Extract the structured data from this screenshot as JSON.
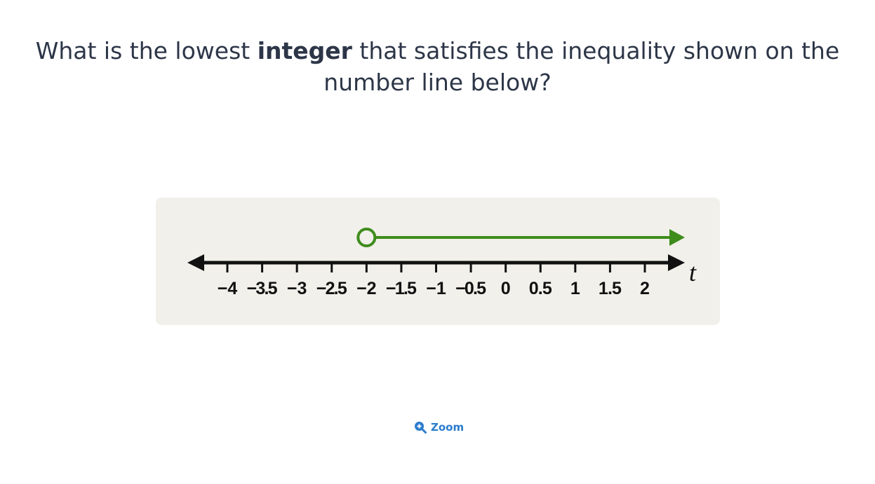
{
  "question": {
    "text_before": "What is the lowest ",
    "text_bold": "integer",
    "text_after": " that satisfies the inequality shown on the number line below?"
  },
  "number_line": {
    "variable": "t",
    "ticks": [
      -4,
      -3.5,
      -3,
      -2.5,
      -2,
      -1.5,
      -1,
      -0.5,
      0,
      0.5,
      1,
      1.5,
      2
    ],
    "tick_labels": [
      "−4",
      "−3.5",
      "−3",
      "−2.5",
      "−2",
      "−1.5",
      "−1",
      "−0.5",
      "0",
      "0.5",
      "1",
      "1.5",
      "2"
    ],
    "ray": {
      "start": -2,
      "endpoint": "open",
      "direction": "right"
    },
    "colors": {
      "axis": "#111111",
      "ray": "#3e8c1c",
      "card_background": "#f2f0ea"
    }
  },
  "zoom": {
    "label": "Zoom",
    "icon": "zoom-in-icon",
    "color": "#2a7ccd"
  }
}
